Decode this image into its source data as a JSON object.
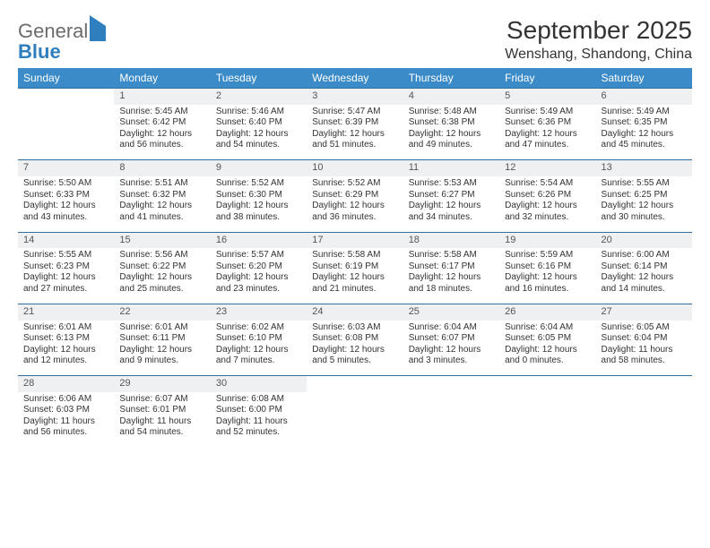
{
  "brand": {
    "general": "General",
    "blue": "Blue"
  },
  "title": "September 2025",
  "location": "Wenshang, Shandong, China",
  "colors": {
    "header_bg": "#3b8bc8",
    "header_text": "#ffffff",
    "daynum_bg": "#eef0f1",
    "row_border": "#2f6ea0",
    "text": "#333333",
    "logo_gray": "#6b6b6b",
    "logo_blue": "#2f7fbf"
  },
  "weekdays": [
    "Sunday",
    "Monday",
    "Tuesday",
    "Wednesday",
    "Thursday",
    "Friday",
    "Saturday"
  ],
  "weeks": [
    {
      "nums": [
        "",
        "1",
        "2",
        "3",
        "4",
        "5",
        "6"
      ],
      "cells": [
        null,
        {
          "sr": "Sunrise: 5:45 AM",
          "ss": "Sunset: 6:42 PM",
          "d1": "Daylight: 12 hours",
          "d2": "and 56 minutes."
        },
        {
          "sr": "Sunrise: 5:46 AM",
          "ss": "Sunset: 6:40 PM",
          "d1": "Daylight: 12 hours",
          "d2": "and 54 minutes."
        },
        {
          "sr": "Sunrise: 5:47 AM",
          "ss": "Sunset: 6:39 PM",
          "d1": "Daylight: 12 hours",
          "d2": "and 51 minutes."
        },
        {
          "sr": "Sunrise: 5:48 AM",
          "ss": "Sunset: 6:38 PM",
          "d1": "Daylight: 12 hours",
          "d2": "and 49 minutes."
        },
        {
          "sr": "Sunrise: 5:49 AM",
          "ss": "Sunset: 6:36 PM",
          "d1": "Daylight: 12 hours",
          "d2": "and 47 minutes."
        },
        {
          "sr": "Sunrise: 5:49 AM",
          "ss": "Sunset: 6:35 PM",
          "d1": "Daylight: 12 hours",
          "d2": "and 45 minutes."
        }
      ]
    },
    {
      "nums": [
        "7",
        "8",
        "9",
        "10",
        "11",
        "12",
        "13"
      ],
      "cells": [
        {
          "sr": "Sunrise: 5:50 AM",
          "ss": "Sunset: 6:33 PM",
          "d1": "Daylight: 12 hours",
          "d2": "and 43 minutes."
        },
        {
          "sr": "Sunrise: 5:51 AM",
          "ss": "Sunset: 6:32 PM",
          "d1": "Daylight: 12 hours",
          "d2": "and 41 minutes."
        },
        {
          "sr": "Sunrise: 5:52 AM",
          "ss": "Sunset: 6:30 PM",
          "d1": "Daylight: 12 hours",
          "d2": "and 38 minutes."
        },
        {
          "sr": "Sunrise: 5:52 AM",
          "ss": "Sunset: 6:29 PM",
          "d1": "Daylight: 12 hours",
          "d2": "and 36 minutes."
        },
        {
          "sr": "Sunrise: 5:53 AM",
          "ss": "Sunset: 6:27 PM",
          "d1": "Daylight: 12 hours",
          "d2": "and 34 minutes."
        },
        {
          "sr": "Sunrise: 5:54 AM",
          "ss": "Sunset: 6:26 PM",
          "d1": "Daylight: 12 hours",
          "d2": "and 32 minutes."
        },
        {
          "sr": "Sunrise: 5:55 AM",
          "ss": "Sunset: 6:25 PM",
          "d1": "Daylight: 12 hours",
          "d2": "and 30 minutes."
        }
      ]
    },
    {
      "nums": [
        "14",
        "15",
        "16",
        "17",
        "18",
        "19",
        "20"
      ],
      "cells": [
        {
          "sr": "Sunrise: 5:55 AM",
          "ss": "Sunset: 6:23 PM",
          "d1": "Daylight: 12 hours",
          "d2": "and 27 minutes."
        },
        {
          "sr": "Sunrise: 5:56 AM",
          "ss": "Sunset: 6:22 PM",
          "d1": "Daylight: 12 hours",
          "d2": "and 25 minutes."
        },
        {
          "sr": "Sunrise: 5:57 AM",
          "ss": "Sunset: 6:20 PM",
          "d1": "Daylight: 12 hours",
          "d2": "and 23 minutes."
        },
        {
          "sr": "Sunrise: 5:58 AM",
          "ss": "Sunset: 6:19 PM",
          "d1": "Daylight: 12 hours",
          "d2": "and 21 minutes."
        },
        {
          "sr": "Sunrise: 5:58 AM",
          "ss": "Sunset: 6:17 PM",
          "d1": "Daylight: 12 hours",
          "d2": "and 18 minutes."
        },
        {
          "sr": "Sunrise: 5:59 AM",
          "ss": "Sunset: 6:16 PM",
          "d1": "Daylight: 12 hours",
          "d2": "and 16 minutes."
        },
        {
          "sr": "Sunrise: 6:00 AM",
          "ss": "Sunset: 6:14 PM",
          "d1": "Daylight: 12 hours",
          "d2": "and 14 minutes."
        }
      ]
    },
    {
      "nums": [
        "21",
        "22",
        "23",
        "24",
        "25",
        "26",
        "27"
      ],
      "cells": [
        {
          "sr": "Sunrise: 6:01 AM",
          "ss": "Sunset: 6:13 PM",
          "d1": "Daylight: 12 hours",
          "d2": "and 12 minutes."
        },
        {
          "sr": "Sunrise: 6:01 AM",
          "ss": "Sunset: 6:11 PM",
          "d1": "Daylight: 12 hours",
          "d2": "and 9 minutes."
        },
        {
          "sr": "Sunrise: 6:02 AM",
          "ss": "Sunset: 6:10 PM",
          "d1": "Daylight: 12 hours",
          "d2": "and 7 minutes."
        },
        {
          "sr": "Sunrise: 6:03 AM",
          "ss": "Sunset: 6:08 PM",
          "d1": "Daylight: 12 hours",
          "d2": "and 5 minutes."
        },
        {
          "sr": "Sunrise: 6:04 AM",
          "ss": "Sunset: 6:07 PM",
          "d1": "Daylight: 12 hours",
          "d2": "and 3 minutes."
        },
        {
          "sr": "Sunrise: 6:04 AM",
          "ss": "Sunset: 6:05 PM",
          "d1": "Daylight: 12 hours",
          "d2": "and 0 minutes."
        },
        {
          "sr": "Sunrise: 6:05 AM",
          "ss": "Sunset: 6:04 PM",
          "d1": "Daylight: 11 hours",
          "d2": "and 58 minutes."
        }
      ]
    },
    {
      "nums": [
        "28",
        "29",
        "30",
        "",
        "",
        "",
        ""
      ],
      "cells": [
        {
          "sr": "Sunrise: 6:06 AM",
          "ss": "Sunset: 6:03 PM",
          "d1": "Daylight: 11 hours",
          "d2": "and 56 minutes."
        },
        {
          "sr": "Sunrise: 6:07 AM",
          "ss": "Sunset: 6:01 PM",
          "d1": "Daylight: 11 hours",
          "d2": "and 54 minutes."
        },
        {
          "sr": "Sunrise: 6:08 AM",
          "ss": "Sunset: 6:00 PM",
          "d1": "Daylight: 11 hours",
          "d2": "and 52 minutes."
        },
        null,
        null,
        null,
        null
      ]
    }
  ]
}
